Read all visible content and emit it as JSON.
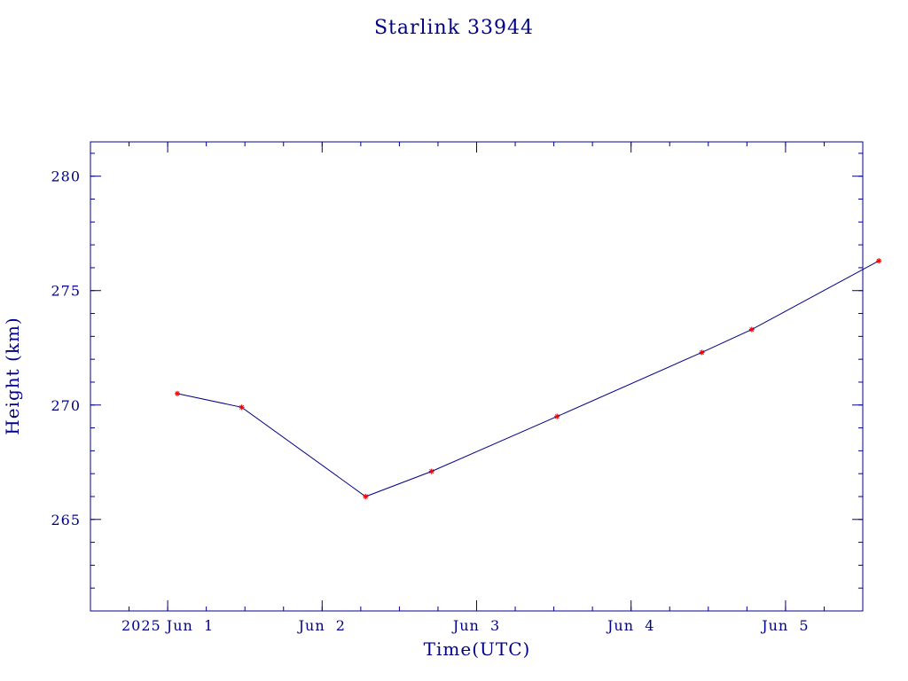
{
  "colors": {
    "axis": "#00008b",
    "line": "#00008b",
    "marker": "#ff0000",
    "background": "#ffffff"
  },
  "chart_data": {
    "type": "line",
    "title": "Starlink 33944",
    "xlabel": "Time(UTC)",
    "ylabel": "Height (km)",
    "x_axis": {
      "type": "date",
      "range": [
        "2025-05-31T12:00",
        "2025-06-05T12:00"
      ],
      "ticks": [
        {
          "at": "2025-06-01T00:00",
          "label": "2025 Jun  1"
        },
        {
          "at": "2025-06-02T00:00",
          "label": "Jun  2"
        },
        {
          "at": "2025-06-03T00:00",
          "label": "Jun  3"
        },
        {
          "at": "2025-06-04T00:00",
          "label": "Jun  4"
        },
        {
          "at": "2025-06-05T00:00",
          "label": "Jun  5"
        }
      ]
    },
    "y_axis": {
      "range": [
        261,
        281.5
      ],
      "ticks": [
        265,
        270,
        275,
        280
      ]
    },
    "grid": false,
    "legend": "none",
    "series": [
      {
        "points": [
          {
            "x": "2025-06-01T01:30",
            "y": 270.5
          },
          {
            "x": "2025-06-01T11:30",
            "y": 269.9
          },
          {
            "x": "2025-06-02T06:45",
            "y": 266.0
          },
          {
            "x": "2025-06-02T17:00",
            "y": 267.1
          },
          {
            "x": "2025-06-03T12:30",
            "y": 269.5
          },
          {
            "x": "2025-06-04T11:00",
            "y": 272.3
          },
          {
            "x": "2025-06-04T18:45",
            "y": 273.3
          },
          {
            "x": "2025-06-05T14:30",
            "y": 276.3
          }
        ]
      }
    ]
  }
}
